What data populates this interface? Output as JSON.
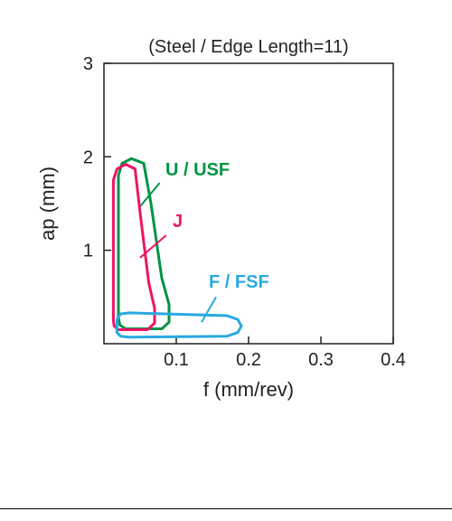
{
  "chart": {
    "type": "outline-region",
    "title": "(Steel / Edge Length=11)",
    "title_fontsize": 20,
    "title_color": "#231f20",
    "xlabel": "f (mm/rev)",
    "ylabel": "ap (mm)",
    "label_fontsize": 22,
    "label_color": "#231f20",
    "xlim": [
      0,
      0.4
    ],
    "ylim": [
      0,
      3
    ],
    "xticks": [
      0.1,
      0.2,
      0.3,
      0.4
    ],
    "yticks": [
      1,
      2,
      3
    ],
    "tick_fontsize": 20,
    "axis_color": "#231f20",
    "axis_width": 1.5,
    "background_color": "#ffffff",
    "series": [
      {
        "name": "U / USF",
        "color": "#009444",
        "stroke_width": 3,
        "label_pos": [
          0.085,
          1.8
        ],
        "label_fontsize": 20,
        "label_weight": "bold",
        "leader": [
          [
            0.077,
            1.72
          ],
          [
            0.048,
            1.45
          ]
        ],
        "path": [
          [
            0.02,
            0.28
          ],
          [
            0.02,
            1.8
          ],
          [
            0.025,
            1.93
          ],
          [
            0.038,
            1.98
          ],
          [
            0.055,
            1.93
          ],
          [
            0.065,
            1.5
          ],
          [
            0.08,
            0.7
          ],
          [
            0.09,
            0.42
          ],
          [
            0.09,
            0.23
          ],
          [
            0.08,
            0.16
          ],
          [
            0.03,
            0.16
          ],
          [
            0.022,
            0.2
          ],
          [
            0.02,
            0.28
          ]
        ]
      },
      {
        "name": "J",
        "color": "#ed1566",
        "stroke_width": 3,
        "label_pos": [
          0.095,
          1.25
        ],
        "label_fontsize": 20,
        "label_weight": "bold",
        "leader": [
          [
            0.086,
            1.16
          ],
          [
            0.05,
            0.92
          ]
        ],
        "path": [
          [
            0.013,
            0.25
          ],
          [
            0.013,
            1.75
          ],
          [
            0.018,
            1.87
          ],
          [
            0.03,
            1.92
          ],
          [
            0.043,
            1.87
          ],
          [
            0.05,
            1.4
          ],
          [
            0.062,
            0.65
          ],
          [
            0.07,
            0.38
          ],
          [
            0.07,
            0.22
          ],
          [
            0.06,
            0.15
          ],
          [
            0.02,
            0.15
          ],
          [
            0.014,
            0.19
          ],
          [
            0.013,
            0.25
          ]
        ]
      },
      {
        "name": "F / FSF",
        "color": "#28aae0",
        "stroke_width": 3,
        "label_pos": [
          0.145,
          0.6
        ],
        "label_fontsize": 20,
        "label_weight": "bold",
        "leader": [
          [
            0.155,
            0.5
          ],
          [
            0.135,
            0.23
          ]
        ],
        "path": [
          [
            0.018,
            0.12
          ],
          [
            0.018,
            0.26
          ],
          [
            0.023,
            0.32
          ],
          [
            0.035,
            0.33
          ],
          [
            0.17,
            0.3
          ],
          [
            0.185,
            0.26
          ],
          [
            0.19,
            0.19
          ],
          [
            0.185,
            0.12
          ],
          [
            0.17,
            0.08
          ],
          [
            0.035,
            0.07
          ],
          [
            0.023,
            0.08
          ],
          [
            0.018,
            0.12
          ]
        ]
      }
    ]
  },
  "footer_line_y": 562
}
